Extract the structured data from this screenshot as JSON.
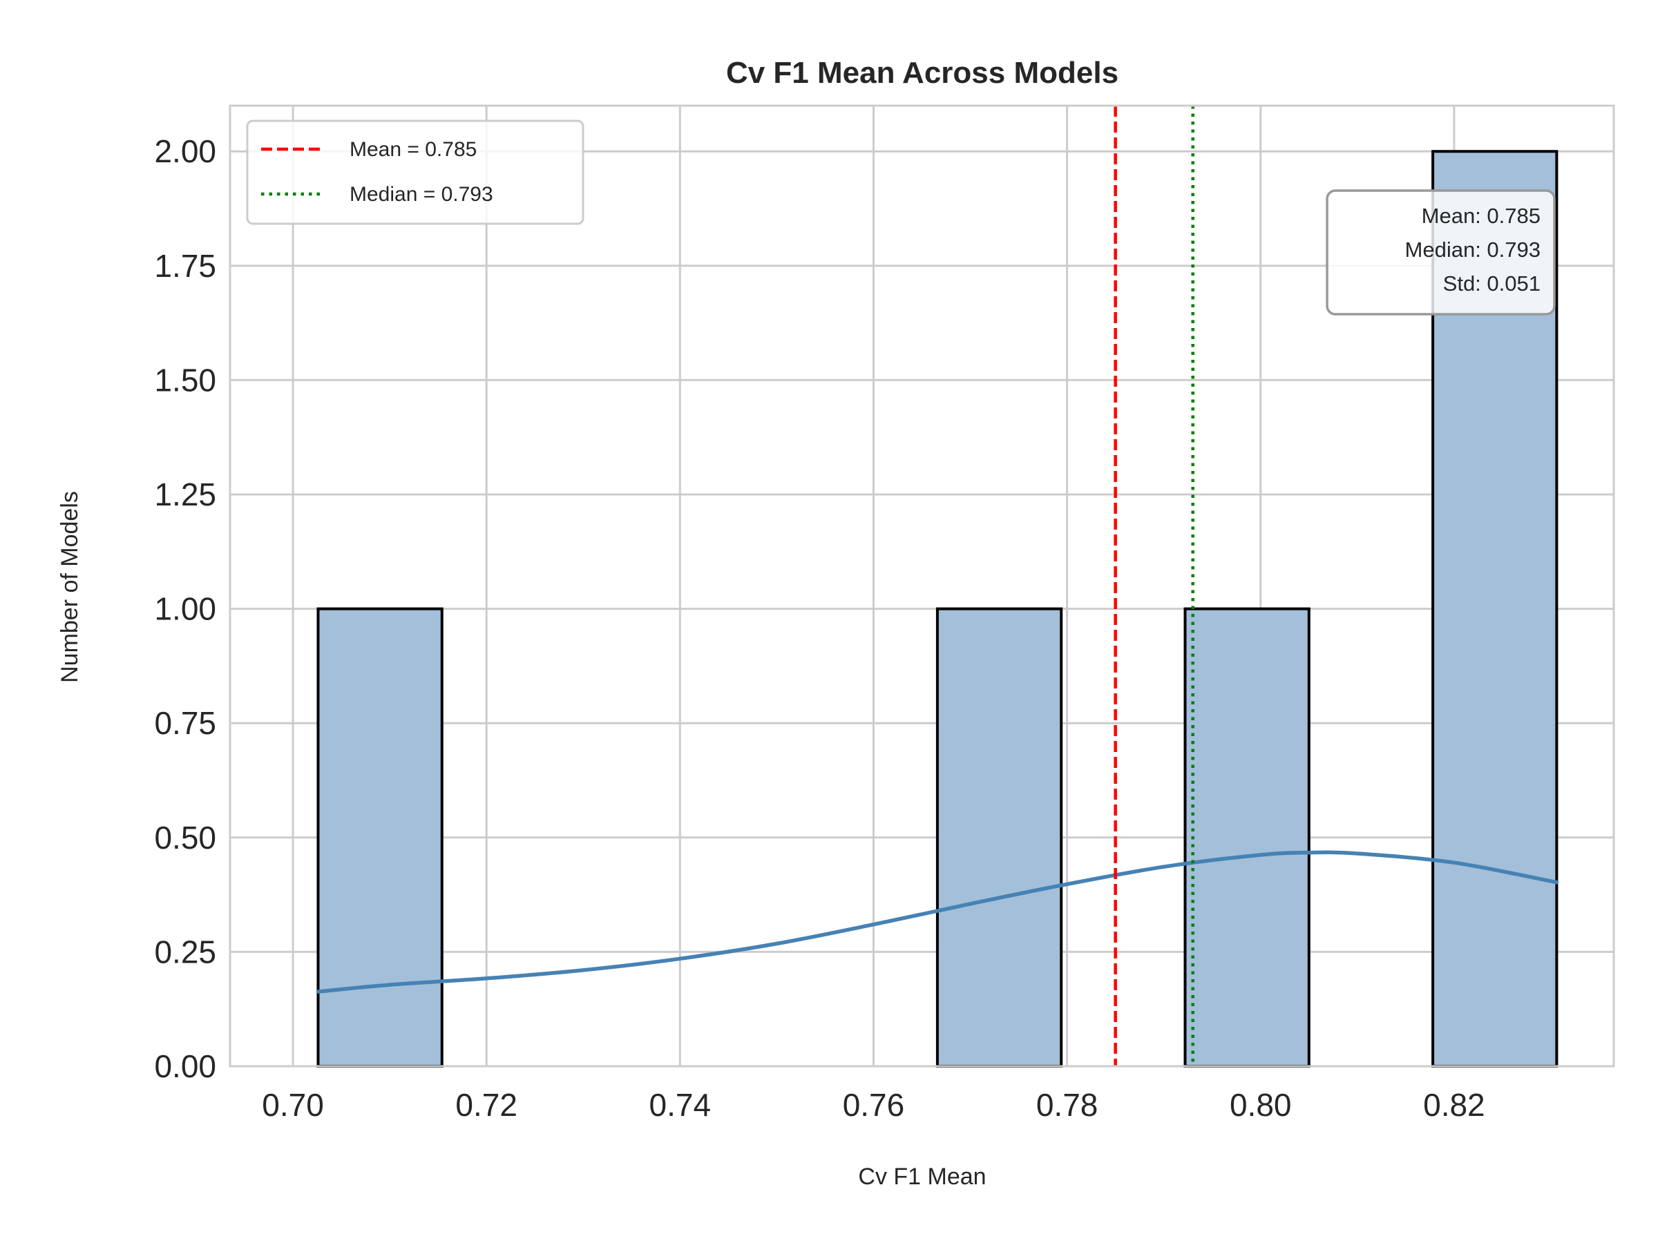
{
  "chart_data": {
    "type": "bar",
    "title": "Cv F1 Mean Across Models",
    "xlabel": "Cv F1 Mean",
    "ylabel": "Number of Models",
    "xlim": [
      0.6935,
      0.8365
    ],
    "ylim": [
      0,
      2.1
    ],
    "x_ticks": [
      0.7,
      0.72,
      0.74,
      0.76,
      0.78,
      0.8,
      0.82
    ],
    "x_tick_labels": [
      "0.70",
      "0.72",
      "0.74",
      "0.76",
      "0.78",
      "0.80",
      "0.82"
    ],
    "y_ticks": [
      0,
      0.25,
      0.5,
      0.75,
      1.0,
      1.25,
      1.5,
      1.75,
      2.0
    ],
    "y_tick_labels": [
      "0.00",
      "0.25",
      "0.50",
      "0.75",
      "1.00",
      "1.25",
      "1.50",
      "1.75",
      "2.00"
    ],
    "grid": true,
    "bins": [
      {
        "x0": 0.7026,
        "x1": 0.7154,
        "count": 1
      },
      {
        "x0": 0.7154,
        "x1": 0.7282,
        "count": 0
      },
      {
        "x0": 0.7282,
        "x1": 0.741,
        "count": 0
      },
      {
        "x0": 0.741,
        "x1": 0.7538,
        "count": 0
      },
      {
        "x0": 0.7538,
        "x1": 0.7666,
        "count": 0
      },
      {
        "x0": 0.7666,
        "x1": 0.7794,
        "count": 1
      },
      {
        "x0": 0.7794,
        "x1": 0.7922,
        "count": 0
      },
      {
        "x0": 0.7922,
        "x1": 0.805,
        "count": 1
      },
      {
        "x0": 0.805,
        "x1": 0.8178,
        "count": 0
      },
      {
        "x0": 0.8178,
        "x1": 0.8306,
        "count": 2
      }
    ],
    "kde": {
      "name": "",
      "x": [
        0.7026,
        0.71,
        0.72,
        0.73,
        0.74,
        0.75,
        0.76,
        0.77,
        0.78,
        0.79,
        0.8,
        0.805,
        0.81,
        0.82,
        0.8306
      ],
      "y": [
        0.163,
        0.178,
        0.192,
        0.21,
        0.235,
        0.268,
        0.31,
        0.355,
        0.398,
        0.436,
        0.462,
        0.467,
        0.465,
        0.445,
        0.402
      ]
    },
    "reference_lines": [
      {
        "name": "Mean = 0.785",
        "x": 0.785,
        "color": "#ff0000",
        "style": "dashed"
      },
      {
        "name": "Median = 0.793",
        "x": 0.793,
        "color": "#008000",
        "style": "dotted"
      }
    ],
    "legend_placement": "top-left",
    "stats_box": {
      "placement": "top-right",
      "lines": [
        "Mean: 0.785",
        "Median: 0.793",
        "Std: 0.051"
      ]
    },
    "colors": {
      "bar_fill": "#a3bfd9",
      "bar_edge": "#000000",
      "kde_line": "#4682b4",
      "grid": "#cccccc"
    }
  }
}
